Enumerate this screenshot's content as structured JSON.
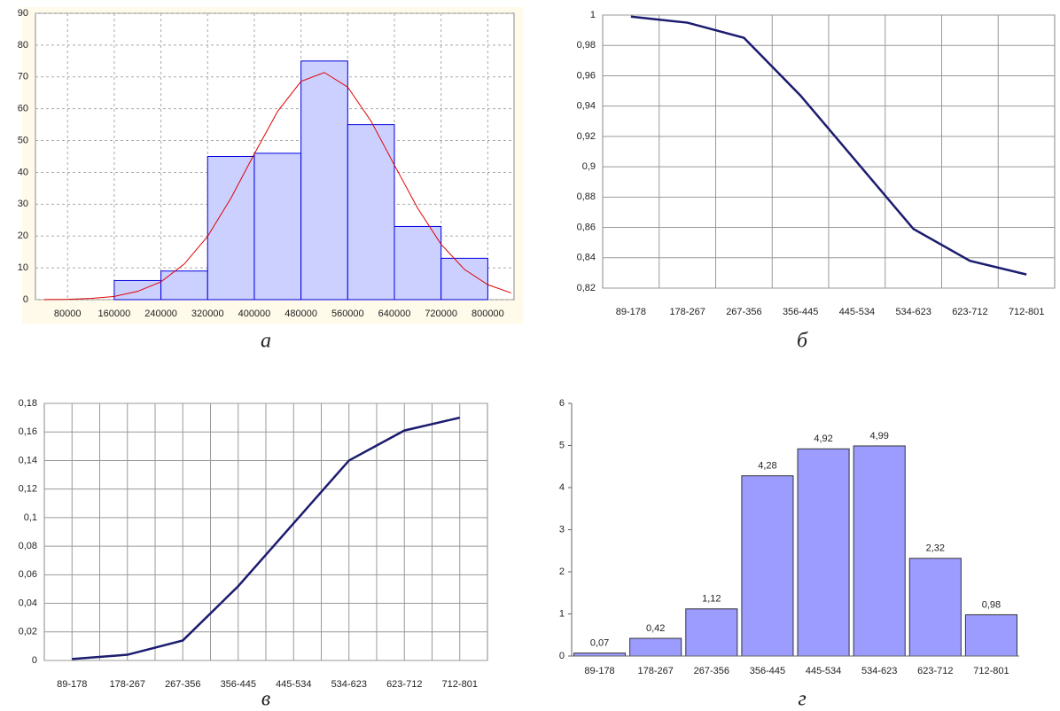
{
  "chart_data": [
    {
      "type": "histogram",
      "caption": "а",
      "bins": [
        160000,
        240000,
        320000,
        400000,
        480000,
        560000,
        640000,
        720000,
        800000
      ],
      "values": [
        6,
        9,
        45,
        46,
        75,
        55,
        23,
        13
      ],
      "color": "#ccd0ff",
      "edge_color": "#0000e0",
      "curve": {
        "x": [
          40000,
          80000,
          120000,
          160000,
          200000,
          240000,
          280000,
          320000,
          360000,
          400000,
          440000,
          480000,
          520000,
          560000,
          600000,
          640000,
          680000,
          720000,
          760000,
          800000,
          840000
        ],
        "values": [
          0.04,
          0.1,
          0.4,
          1.0,
          2.6,
          5.6,
          11.2,
          19.9,
          31.9,
          45.8,
          59.2,
          68.6,
          71.4,
          66.8,
          56.1,
          42.3,
          28.7,
          17.4,
          9.5,
          4.7,
          2.1
        ],
        "color": "#e00000"
      },
      "xlim": [
        25000,
        845000
      ],
      "xticks": [
        80000,
        160000,
        240000,
        320000,
        400000,
        480000,
        560000,
        640000,
        720000,
        800000
      ],
      "ylim": [
        0,
        90
      ],
      "yticks": [
        0,
        10,
        20,
        30,
        40,
        50,
        60,
        70,
        80,
        90
      ],
      "grid": true,
      "grid_style": "dashed",
      "background": "#fffaea"
    },
    {
      "type": "line",
      "caption": "б",
      "categories": [
        "89-178",
        "178-267",
        "267-356",
        "356-445",
        "445-534",
        "534-623",
        "623-712",
        "712-801"
      ],
      "values": [
        0.999,
        0.995,
        0.985,
        0.947,
        0.903,
        0.859,
        0.838,
        0.829
      ],
      "color": "#1c1c70",
      "ylim": [
        0.82,
        1
      ],
      "yticks": [
        {
          "value": 0.82,
          "label": "0,82"
        },
        {
          "value": 0.84,
          "label": "0,84"
        },
        {
          "value": 0.86,
          "label": "0,86"
        },
        {
          "value": 0.88,
          "label": "0,88"
        },
        {
          "value": 0.9,
          "label": "0,9"
        },
        {
          "value": 0.92,
          "label": "0,92"
        },
        {
          "value": 0.94,
          "label": "0,94"
        },
        {
          "value": 0.96,
          "label": "0,96"
        },
        {
          "value": 0.98,
          "label": "0,98"
        },
        1
      ],
      "grid": true
    },
    {
      "type": "line",
      "caption": "в",
      "categories": [
        "89-178",
        "178-267",
        "267-356",
        "356-445",
        "445-534",
        "534-623",
        "623-712",
        "712-801"
      ],
      "values": [
        0.001,
        0.004,
        0.014,
        0.052,
        0.096,
        0.14,
        0.161,
        0.17
      ],
      "color": "#1c1c70",
      "ylim": [
        0,
        0.18
      ],
      "yticks": [
        0,
        {
          "value": 0.02,
          "label": "0,02"
        },
        {
          "value": 0.04,
          "label": "0,04"
        },
        {
          "value": 0.06,
          "label": "0,06"
        },
        {
          "value": 0.08,
          "label": "0,08"
        },
        {
          "value": 0.1,
          "label": "0,1"
        },
        {
          "value": 0.12,
          "label": "0,12"
        },
        {
          "value": 0.14,
          "label": "0,14"
        },
        {
          "value": 0.16,
          "label": "0,16"
        },
        {
          "value": 0.18,
          "label": "0,18"
        }
      ],
      "grid": true
    },
    {
      "type": "bar",
      "caption": "г",
      "categories": [
        "89-178",
        "178-267",
        "267-356",
        "356-445",
        "445-534",
        "534-623",
        "623-712",
        "712-801"
      ],
      "values": [
        0.07,
        0.42,
        1.12,
        4.28,
        4.92,
        4.99,
        2.32,
        0.98
      ],
      "value_labels": [
        "0,07",
        "0,42",
        "1,12",
        "4,28",
        "4,92",
        "4,99",
        "2,32",
        "0,98"
      ],
      "color": "#9c9cff",
      "ylim": [
        0,
        6
      ],
      "yticks": [
        0,
        1,
        2,
        3,
        4,
        5,
        6
      ],
      "grid": false
    }
  ]
}
